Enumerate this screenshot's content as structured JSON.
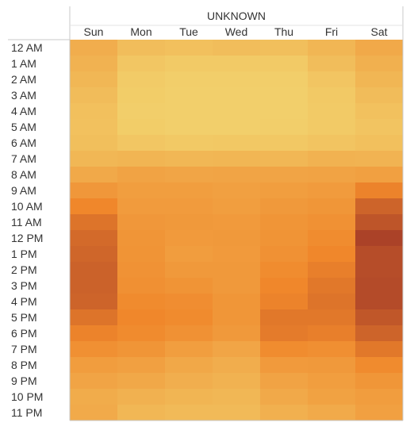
{
  "chart_data": {
    "type": "heatmap",
    "title": "UNKNOWN",
    "columns": [
      "Sun",
      "Mon",
      "Tue",
      "Wed",
      "Thu",
      "Fri",
      "Sat"
    ],
    "rows": [
      "12 AM",
      "1 AM",
      "2 AM",
      "3 AM",
      "4 AM",
      "5 AM",
      "6 AM",
      "7 AM",
      "8 AM",
      "9 AM",
      "10 AM",
      "11 AM",
      "12 PM",
      "1 PM",
      "2 PM",
      "3 PM",
      "4 PM",
      "5 PM",
      "6 PM",
      "7 PM",
      "8 PM",
      "9 PM",
      "10 PM",
      "11 PM"
    ],
    "values": [
      [
        30,
        17,
        15,
        17,
        16,
        23,
        33
      ],
      [
        26,
        10,
        7,
        7,
        7,
        17,
        28
      ],
      [
        22,
        6,
        4,
        4,
        4,
        11,
        23
      ],
      [
        18,
        5,
        3,
        3,
        3,
        8,
        18
      ],
      [
        15,
        4,
        3,
        3,
        3,
        7,
        14
      ],
      [
        14,
        5,
        3,
        3,
        4,
        7,
        12
      ],
      [
        16,
        10,
        8,
        9,
        9,
        12,
        15
      ],
      [
        22,
        24,
        22,
        23,
        22,
        26,
        25
      ],
      [
        33,
        38,
        36,
        37,
        37,
        38,
        40
      ],
      [
        47,
        42,
        42,
        40,
        42,
        44,
        62
      ],
      [
        60,
        44,
        44,
        42,
        46,
        48,
        78
      ],
      [
        70,
        47,
        46,
        45,
        49,
        52,
        86
      ],
      [
        75,
        49,
        45,
        46,
        50,
        56,
        96
      ],
      [
        77,
        50,
        43,
        45,
        52,
        60,
        90
      ],
      [
        79,
        51,
        46,
        46,
        56,
        64,
        90
      ],
      [
        79,
        53,
        50,
        46,
        60,
        68,
        91
      ],
      [
        78,
        57,
        55,
        48,
        62,
        70,
        91
      ],
      [
        70,
        60,
        57,
        48,
        68,
        68,
        85
      ],
      [
        62,
        57,
        52,
        46,
        66,
        64,
        78
      ],
      [
        53,
        49,
        42,
        36,
        56,
        54,
        68
      ],
      [
        43,
        40,
        34,
        30,
        45,
        46,
        57
      ],
      [
        37,
        34,
        29,
        26,
        38,
        42,
        48
      ],
      [
        31,
        27,
        24,
        22,
        33,
        39,
        43
      ],
      [
        32,
        22,
        20,
        20,
        28,
        32,
        40
      ]
    ],
    "color_scale": {
      "low": "#f2d36e",
      "mid": "#f0872b",
      "high": "#a33a28"
    },
    "grid": false,
    "legend": "none"
  }
}
